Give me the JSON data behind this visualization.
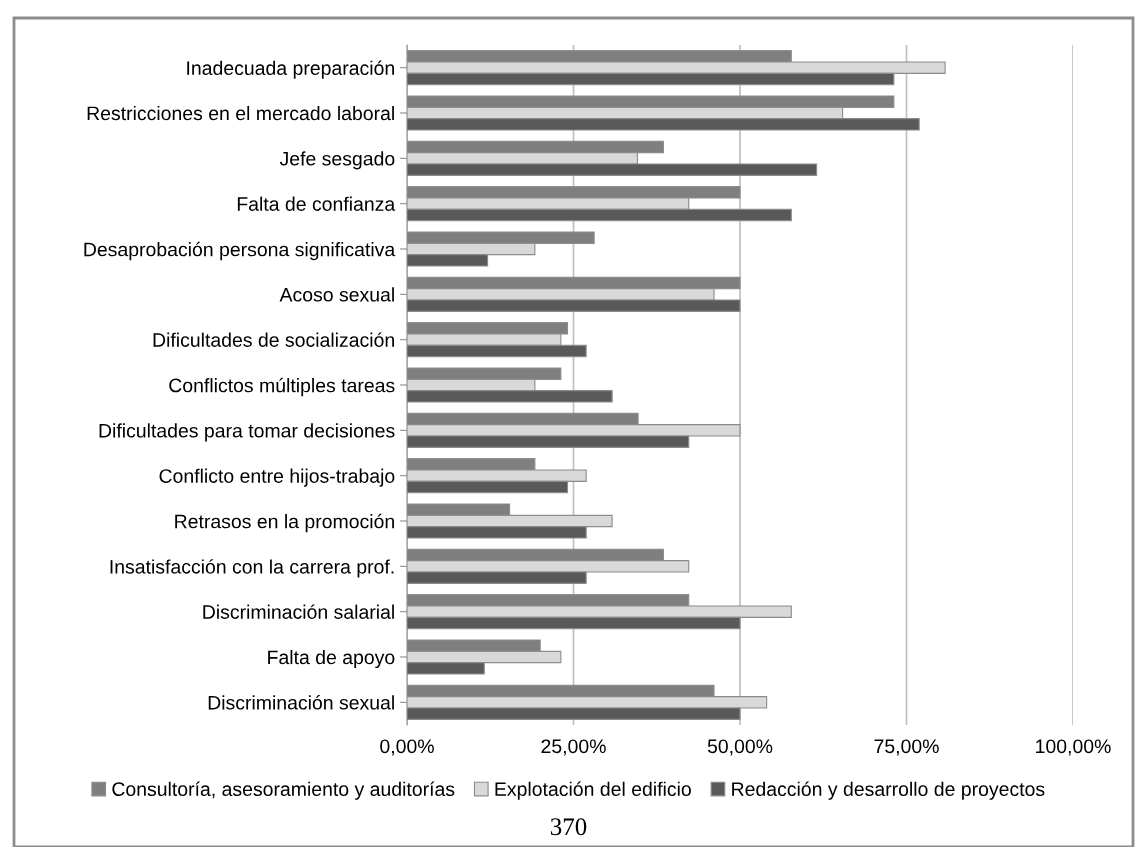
{
  "chart_data": {
    "type": "bar",
    "orientation": "horizontal",
    "categories": [
      "Inadecuada preparación",
      "Restricciones en el mercado laboral",
      "Jefe sesgado",
      "Falta de confianza",
      "Desaprobación persona significativa",
      "Acoso sexual",
      "Dificultades de socialización",
      "Conflictos múltiples tareas",
      "Dificultades para tomar decisiones",
      "Conflicto entre hijos-trabajo",
      "Retrasos en la promoción",
      "Insatisfacción con la carrera prof.",
      "Discriminación salarial",
      "Falta de apoyo",
      "Discriminación sexual"
    ],
    "series": [
      {
        "name": "Consultoría, asesoramiento y auditorías",
        "color": "#7f7f7f",
        "values": [
          57.7,
          73.1,
          38.5,
          50,
          28.1,
          50,
          24.1,
          23.1,
          34.7,
          19.2,
          15.4,
          38.5,
          42.3,
          20,
          46.1
        ]
      },
      {
        "name": "Explotación del edificio",
        "color": "#d9d9d9",
        "values": [
          80.8,
          65.4,
          34.6,
          42.3,
          19.2,
          46.1,
          23.1,
          19.2,
          50,
          26.9,
          30.8,
          42.3,
          57.7,
          23.1,
          54
        ]
      },
      {
        "name": "Redacción y desarrollo de proyectos",
        "color": "#595959",
        "values": [
          73.1,
          76.9,
          61.5,
          57.7,
          12.1,
          50,
          26.9,
          30.8,
          42.3,
          24.1,
          26.9,
          26.9,
          50,
          11.6,
          50
        ]
      }
    ],
    "xlim": [
      0,
      100
    ],
    "xticks": [
      {
        "value": 0,
        "label": "0,00%"
      },
      {
        "value": 25,
        "label": "25,00%"
      },
      {
        "value": 50,
        "label": "50,00%"
      },
      {
        "value": 75,
        "label": "75,00%"
      },
      {
        "value": 100,
        "label": "100,00%"
      }
    ],
    "grid": "x",
    "legend": "bottom",
    "annotations": [
      "370"
    ]
  }
}
